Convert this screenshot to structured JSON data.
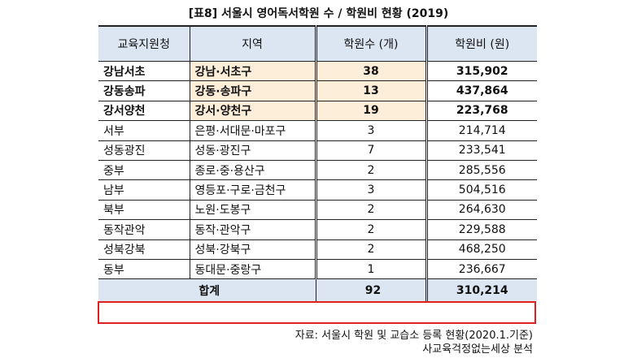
{
  "title": "[표8] 서울시 영어독서학원 수 / 학원비 현황 (2019)",
  "headers": [
    "교육지원청",
    "지역",
    "학원수 (개)",
    "학원비 (원)"
  ],
  "rows": [
    {
      "office": "강남서초",
      "area": "강남·서초구",
      "count": "38",
      "fee": "315,902",
      "highlight": true
    },
    {
      "office": "강동송파",
      "area": "강동·송파구",
      "count": "13",
      "fee": "437,864",
      "highlight": true
    },
    {
      "office": "강서양천",
      "area": "강서·양천구",
      "count": "19",
      "fee": "223,768",
      "highlight": true
    },
    {
      "office": "서부",
      "area": "은평·서대문·마포구",
      "count": "3",
      "fee": "214,714"
    },
    {
      "office": "성동광진",
      "area": "성동·광진구",
      "count": "7",
      "fee": "233,541"
    },
    {
      "office": "중부",
      "area": "종로·중·용산구",
      "count": "2",
      "fee": "285,556"
    },
    {
      "office": "남부",
      "area": "영등포·구로·금천구",
      "count": "3",
      "fee": "504,516"
    },
    {
      "office": "북부",
      "area": "노원·도봉구",
      "count": "2",
      "fee": "264,630"
    },
    {
      "office": "동작관악",
      "area": "동작·관악구",
      "count": "2",
      "fee": "229,588"
    },
    {
      "office": "성북강북",
      "area": "성북·강북구",
      "count": "2",
      "fee": "468,250"
    },
    {
      "office": "동부",
      "area": "동대문·중랑구",
      "count": "1",
      "fee": "236,667"
    }
  ],
  "total": {
    "label": "합계",
    "count": "92",
    "fee": "310,214"
  },
  "source": "자료: 서울시 학원 및 교습소 등록 현황(2020.1.기준)",
  "analysis": "사교육걱정없는세상 분석",
  "colors": {
    "header_bg": "#dce6f2",
    "highlight_bg": "#fdeeda",
    "total_border": "#e02020"
  }
}
